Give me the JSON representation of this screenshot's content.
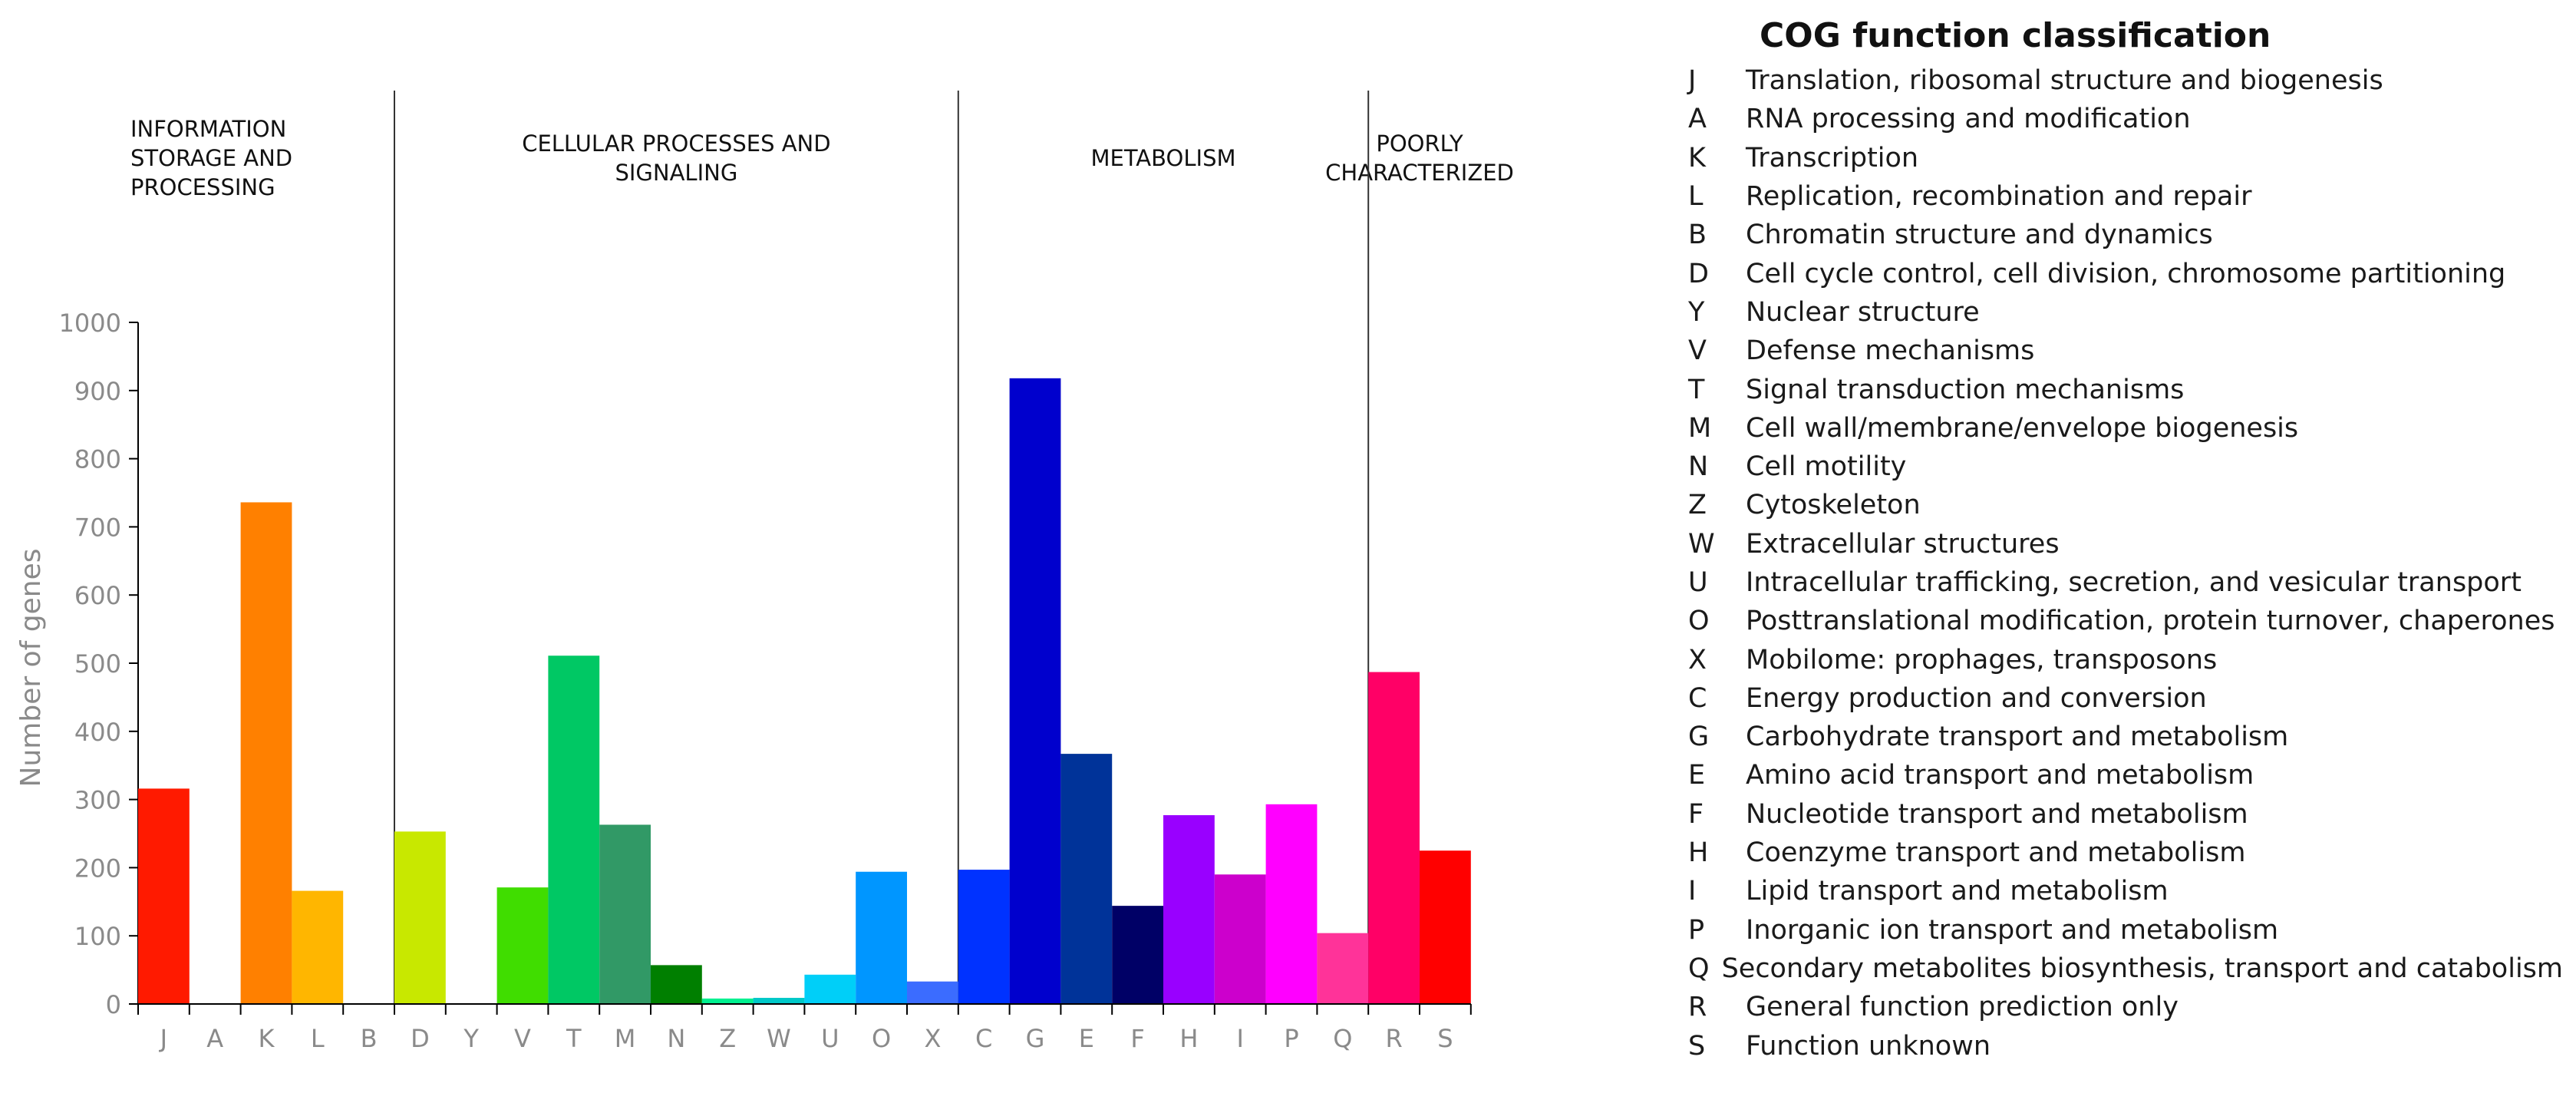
{
  "chart_data": {
    "type": "bar",
    "categories": [
      "J",
      "A",
      "K",
      "L",
      "B",
      "D",
      "Y",
      "V",
      "T",
      "M",
      "N",
      "Z",
      "W",
      "U",
      "O",
      "X",
      "C",
      "G",
      "E",
      "F",
      "H",
      "I",
      "P",
      "Q",
      "R",
      "S"
    ],
    "values": [
      316,
      0,
      736,
      166,
      0,
      253,
      0,
      171,
      511,
      263,
      57,
      8,
      9,
      43,
      194,
      33,
      197,
      918,
      367,
      144,
      277,
      190,
      293,
      104,
      487,
      225
    ],
    "colors": [
      "#ff1a00",
      "#ffffff",
      "#ff8000",
      "#ffb600",
      "#ffffff",
      "#c8e800",
      "#ffffff",
      "#40dd00",
      "#00c864",
      "#319966",
      "#007f00",
      "#00f090",
      "#00c8c8",
      "#00cff8",
      "#0096ff",
      "#3b6cff",
      "#0032ff",
      "#0000cd",
      "#003399",
      "#000066",
      "#9900ff",
      "#cc00cc",
      "#ff00ff",
      "#ff3399",
      "#ff0066",
      "#ff0000"
    ],
    "ylabel": "Number of genes",
    "ylim": [
      0,
      1000
    ],
    "yticks": [
      "0",
      "100",
      "200",
      "300",
      "400",
      "500",
      "600",
      "700",
      "800",
      "900",
      "1000"
    ],
    "groups": [
      {
        "label": [
          "INFORMATION",
          "STORAGE AND",
          "PROCESSING"
        ],
        "start": 0,
        "end": 5
      },
      {
        "label": [
          "CELLULAR PROCESSES AND",
          "SIGNALING"
        ],
        "start": 5,
        "end": 16
      },
      {
        "label": [
          "METABOLISM"
        ],
        "start": 16,
        "end": 24
      },
      {
        "label": [
          "POORLY",
          "CHARACTERIZED"
        ],
        "start": 24,
        "end": 26
      }
    ]
  },
  "legend": {
    "title": "COG function classification",
    "items": [
      {
        "code": "J",
        "desc": "Translation, ribosomal structure and biogenesis"
      },
      {
        "code": "A",
        "desc": "RNA processing and modification"
      },
      {
        "code": "K",
        "desc": "Transcription"
      },
      {
        "code": "L",
        "desc": "Replication, recombination and repair"
      },
      {
        "code": "B",
        "desc": "Chromatin structure and dynamics"
      },
      {
        "code": "D",
        "desc": "Cell cycle control, cell division, chromosome partitioning"
      },
      {
        "code": "Y",
        "desc": "Nuclear structure"
      },
      {
        "code": "V",
        "desc": "Defense mechanisms"
      },
      {
        "code": "T",
        "desc": "Signal transduction mechanisms"
      },
      {
        "code": "M",
        "desc": "Cell wall/membrane/envelope biogenesis"
      },
      {
        "code": "N",
        "desc": "Cell motility"
      },
      {
        "code": "Z",
        "desc": "Cytoskeleton"
      },
      {
        "code": "W",
        "desc": "Extracellular structures"
      },
      {
        "code": "U",
        "desc": "Intracellular trafficking, secretion, and vesicular transport"
      },
      {
        "code": "O",
        "desc": "Posttranslational modification, protein turnover, chaperones"
      },
      {
        "code": "X",
        "desc": "Mobilome: prophages, transposons"
      },
      {
        "code": "C",
        "desc": "Energy production and conversion"
      },
      {
        "code": "G",
        "desc": "Carbohydrate transport and metabolism"
      },
      {
        "code": "E",
        "desc": "Amino acid transport and metabolism"
      },
      {
        "code": "F",
        "desc": "Nucleotide transport and metabolism"
      },
      {
        "code": "H",
        "desc": "Coenzyme transport and metabolism"
      },
      {
        "code": "I",
        "desc": "Lipid transport and metabolism"
      },
      {
        "code": "P",
        "desc": "Inorganic ion transport and metabolism"
      },
      {
        "code": "Q",
        "desc": "Secondary metabolites biosynthesis, transport and catabolism"
      },
      {
        "code": "R",
        "desc": "General function prediction only"
      },
      {
        "code": "S",
        "desc": "Function unknown"
      }
    ]
  }
}
